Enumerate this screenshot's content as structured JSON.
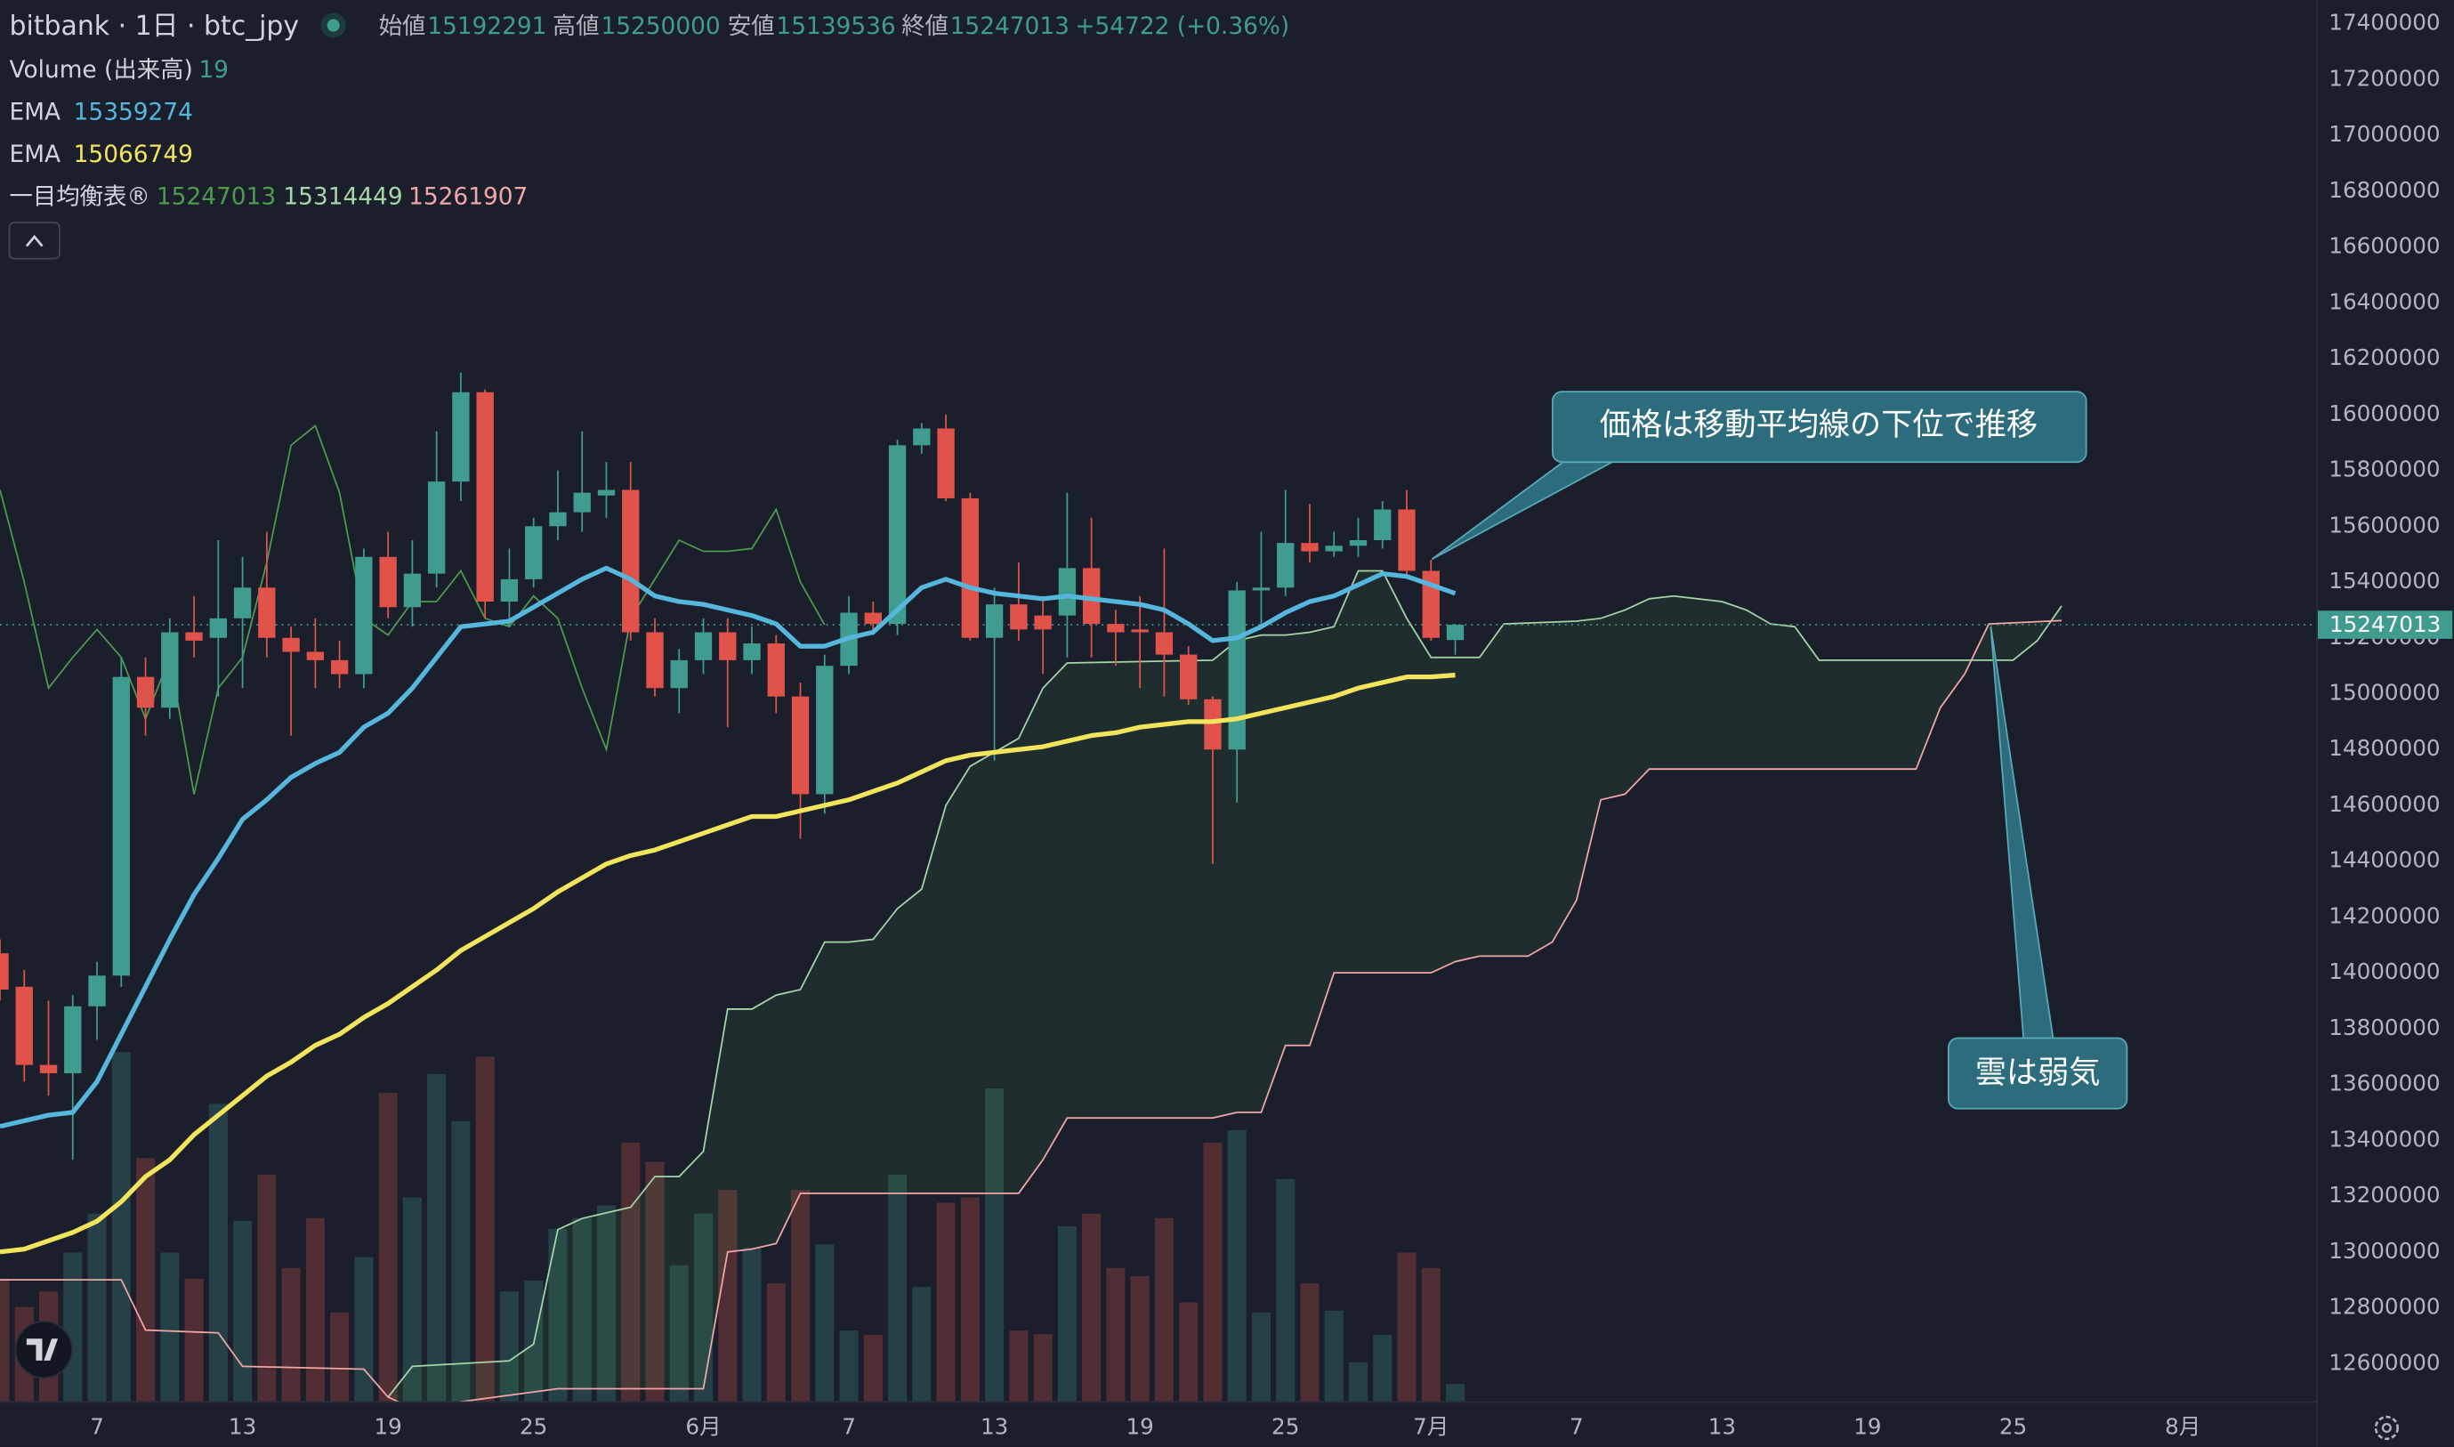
{
  "chart_data": {
    "type": "candlestick",
    "title": "bitbank · 1日 · btc_jpy",
    "ohlc_labels": [
      "始値",
      "高値",
      "安値",
      "終値"
    ],
    "change_label": "+54722 (+0.36%)",
    "up_color": "#3f9c8e",
    "down_color": "#e0534a",
    "x": [
      3,
      4,
      5,
      6,
      7,
      8,
      9,
      10,
      11,
      12,
      13,
      14,
      15,
      16,
      17,
      18,
      19,
      20,
      21,
      22,
      23,
      24,
      25,
      26,
      27,
      28,
      29,
      30,
      31,
      32,
      33,
      34,
      35,
      36,
      37,
      38,
      39,
      40,
      41,
      42,
      43,
      44,
      45,
      46,
      47,
      48,
      49,
      50,
      51,
      52,
      53,
      54,
      55,
      56,
      57,
      58,
      59,
      60,
      61,
      62,
      63
    ],
    "open": [
      14070000,
      13950000,
      13670000,
      13640000,
      13880000,
      13990000,
      15060000,
      14950000,
      15220000,
      15200000,
      15270000,
      15380000,
      15200000,
      15150000,
      15120000,
      15070000,
      15490000,
      15310000,
      15430000,
      15760000,
      16080000,
      15330000,
      15410000,
      15600000,
      15650000,
      15710000,
      15730000,
      15220000,
      15020000,
      15120000,
      15220000,
      15120000,
      15180000,
      14990000,
      14640000,
      15100000,
      15290000,
      15250000,
      15890000,
      15950000,
      15700000,
      15200000,
      15320000,
      15280000,
      15280000,
      15450000,
      15250000,
      15230000,
      15220000,
      15140000,
      14980000,
      14800000,
      15370000,
      15380000,
      15540000,
      15510000,
      15530000,
      15550000,
      15660000,
      15440000,
      15192291
    ],
    "high": [
      14120000,
      14010000,
      13900000,
      13920000,
      14040000,
      15130000,
      15130000,
      15270000,
      15350000,
      15550000,
      15490000,
      15580000,
      15240000,
      15270000,
      15190000,
      15520000,
      15580000,
      15550000,
      15940000,
      16150000,
      16090000,
      15520000,
      15630000,
      15800000,
      15940000,
      15830000,
      15830000,
      15270000,
      15160000,
      15270000,
      15270000,
      15240000,
      15210000,
      15040000,
      15140000,
      15350000,
      15330000,
      15910000,
      15970000,
      16000000,
      15720000,
      15380000,
      15470000,
      15350000,
      15720000,
      15630000,
      15300000,
      15350000,
      15520000,
      15170000,
      14990000,
      15400000,
      15580000,
      15730000,
      15680000,
      15580000,
      15630000,
      15690000,
      15730000,
      15480000,
      15250000
    ],
    "low": [
      13900000,
      13610000,
      13560000,
      13330000,
      13760000,
      13950000,
      14850000,
      14910000,
      15130000,
      14990000,
      15020000,
      15130000,
      14850000,
      15020000,
      15020000,
      15020000,
      15270000,
      15240000,
      15380000,
      15690000,
      15270000,
      15240000,
      15380000,
      15550000,
      15580000,
      15630000,
      15190000,
      14990000,
      14930000,
      15070000,
      14880000,
      15070000,
      14930000,
      14480000,
      14570000,
      15070000,
      15210000,
      15210000,
      15860000,
      15690000,
      15190000,
      14760000,
      15190000,
      15070000,
      15130000,
      15130000,
      15100000,
      15020000,
      14990000,
      14960000,
      14390000,
      14610000,
      15240000,
      15350000,
      15470000,
      15490000,
      15490000,
      15520000,
      15420000,
      15190000,
      15139536
    ],
    "close": [
      13940000,
      13670000,
      13640000,
      13880000,
      13990000,
      15060000,
      14950000,
      15220000,
      15190000,
      15270000,
      15380000,
      15200000,
      15150000,
      15120000,
      15070000,
      15490000,
      15310000,
      15430000,
      15760000,
      16080000,
      15330000,
      15410000,
      15600000,
      15650000,
      15720000,
      15730000,
      15220000,
      15020000,
      15120000,
      15220000,
      15120000,
      15180000,
      14990000,
      14640000,
      15100000,
      15290000,
      15250000,
      15890000,
      15950000,
      15700000,
      15200000,
      15320000,
      15230000,
      15230000,
      15450000,
      15250000,
      15220000,
      15220000,
      15140000,
      14980000,
      14800000,
      15370000,
      15380000,
      15540000,
      15510000,
      15530000,
      15550000,
      15660000,
      15440000,
      15200000,
      15247013
    ],
    "xlim": [
      3,
      98.5
    ],
    "ylim": [
      12465000,
      17484000
    ],
    "yticks": [
      12600000,
      12800000,
      13000000,
      13200000,
      13400000,
      13600000,
      13800000,
      14000000,
      14200000,
      14400000,
      14600000,
      14800000,
      15000000,
      15200000,
      15400000,
      15600000,
      15800000,
      16000000,
      16200000,
      16400000,
      16600000,
      16800000,
      17000000,
      17200000,
      17400000
    ],
    "xticks": [
      7,
      13,
      19,
      25,
      {
        "value": 32,
        "label": "6月"
      },
      {
        "value": 38,
        "label": "7"
      },
      {
        "value": 44,
        "label": "13"
      },
      {
        "value": 50,
        "label": "19"
      },
      {
        "value": 56,
        "label": "25"
      },
      {
        "value": 62,
        "label": "7月"
      },
      {
        "value": 68,
        "label": "7"
      },
      {
        "value": 74,
        "label": "13"
      },
      {
        "value": 80,
        "label": "19"
      },
      {
        "value": 86,
        "label": "25"
      },
      {
        "value": 93,
        "label": "8月"
      }
    ],
    "grid": false,
    "volume": {
      "name": "Volume (出来高)",
      "values": [
        135,
        104,
        121,
        164,
        207,
        385,
        268,
        164,
        135,
        328,
        199,
        250,
        147,
        202,
        98,
        159,
        340,
        225,
        361,
        309,
        380,
        121,
        133,
        190,
        202,
        216,
        285,
        264,
        150,
        207,
        233,
        169,
        130,
        233,
        173,
        78,
        73,
        250,
        126,
        219,
        225,
        345,
        78,
        74,
        193,
        207,
        147,
        138,
        202,
        109,
        285,
        299,
        98,
        245,
        130,
        100,
        43,
        73,
        164,
        147,
        19
      ]
    },
    "volume_ylim": [
      0,
      1545
    ],
    "series": [
      {
        "name": "EMA",
        "color": "#56b6dc",
        "values": [
          13450000,
          13470000,
          13490000,
          13500000,
          13610000,
          13780000,
          13950000,
          14120000,
          14280000,
          14410000,
          14550000,
          14620000,
          14700000,
          14750000,
          14790000,
          14880000,
          14930000,
          15020000,
          15130000,
          15240000,
          15250000,
          15260000,
          15310000,
          15360000,
          15410000,
          15450000,
          15410000,
          15350000,
          15330000,
          15320000,
          15300000,
          15280000,
          15250000,
          15170000,
          15170000,
          15200000,
          15220000,
          15300000,
          15380000,
          15410000,
          15380000,
          15360000,
          15350000,
          15340000,
          15350000,
          15340000,
          15330000,
          15320000,
          15300000,
          15250000,
          15190000,
          15200000,
          15240000,
          15290000,
          15330000,
          15350000,
          15390000,
          15430000,
          15420000,
          15390000,
          15359274
        ]
      },
      {
        "name": "EMA",
        "color": "#f3e45d",
        "values": [
          13000000,
          13010000,
          13040000,
          13070000,
          13110000,
          13180000,
          13270000,
          13330000,
          13420000,
          13490000,
          13560000,
          13630000,
          13680000,
          13740000,
          13780000,
          13840000,
          13890000,
          13950000,
          14010000,
          14080000,
          14130000,
          14180000,
          14230000,
          14290000,
          14340000,
          14390000,
          14420000,
          14440000,
          14470000,
          14500000,
          14530000,
          14560000,
          14560000,
          14580000,
          14600000,
          14620000,
          14650000,
          14680000,
          14720000,
          14760000,
          14780000,
          14790000,
          14800000,
          14810000,
          14830000,
          14850000,
          14860000,
          14880000,
          14890000,
          14900000,
          14900000,
          14910000,
          14930000,
          14950000,
          14970000,
          14990000,
          15020000,
          15040000,
          15060000,
          15060000,
          15066749
        ]
      }
    ],
    "ichimoku": {
      "name": "一目均衡表®",
      "cloud_color": "rgba(76,175,80,0.1)",
      "lines": [
        {
          "color": "#4e9a4e",
          "x": [
            3,
            4,
            5,
            6,
            7,
            8,
            9,
            10,
            11,
            12,
            13,
            14,
            15,
            16,
            17,
            18,
            19,
            20,
            21,
            22,
            23,
            24,
            25,
            26,
            27,
            28,
            29,
            30,
            31,
            32,
            33,
            34,
            35,
            36,
            37
          ],
          "values": [
            15730000,
            15400000,
            15020000,
            15130000,
            15230000,
            15130000,
            14910000,
            15130000,
            14640000,
            15020000,
            15130000,
            15470000,
            15890000,
            15960000,
            15720000,
            15270000,
            15210000,
            15330000,
            15330000,
            15440000,
            15270000,
            15240000,
            15350000,
            15270000,
            15020000,
            14800000,
            15270000,
            15410000,
            15550000,
            15510000,
            15510000,
            15520000,
            15660000,
            15400000,
            15247013
          ]
        },
        {
          "color": "#a5d6a7",
          "x": [
            19,
            20,
            24,
            25,
            26,
            27,
            28,
            29,
            30,
            31,
            32,
            33,
            34,
            35,
            36,
            37,
            38,
            39,
            40,
            41,
            42,
            43,
            44,
            45,
            46,
            47,
            53,
            54,
            55,
            56,
            57,
            58,
            59,
            60,
            61,
            62,
            63,
            64,
            65,
            68,
            69,
            70,
            71,
            72,
            73,
            74,
            75,
            76,
            77,
            78,
            86,
            87,
            88
          ],
          "values": [
            12480000,
            12590000,
            12610000,
            12670000,
            13080000,
            13120000,
            13140000,
            13160000,
            13270000,
            13270000,
            13360000,
            13870000,
            13870000,
            13920000,
            13940000,
            14110000,
            14110000,
            14120000,
            14230000,
            14300000,
            14600000,
            14740000,
            14790000,
            14840000,
            15020000,
            15110000,
            15120000,
            15190000,
            15210000,
            15210000,
            15220000,
            15240000,
            15440000,
            15440000,
            15270000,
            15130000,
            15130000,
            15130000,
            15250000,
            15260000,
            15270000,
            15300000,
            15340000,
            15350000,
            15340000,
            15330000,
            15300000,
            15250000,
            15240000,
            15120000,
            15120000,
            15190000,
            15314449
          ]
        },
        {
          "color": "#f2a7a7",
          "x": [
            3,
            8,
            9,
            12,
            13,
            18,
            19,
            20,
            26,
            32,
            33,
            34,
            35,
            36,
            45,
            46,
            47,
            53,
            54,
            55,
            56,
            57,
            58,
            62,
            63,
            64,
            66,
            67,
            68,
            69,
            70,
            71,
            82,
            83,
            84,
            85,
            88
          ],
          "values": [
            12900000,
            12900000,
            12720000,
            12710000,
            12590000,
            12580000,
            12480000,
            12440000,
            12510000,
            12510000,
            13000000,
            13010000,
            13030000,
            13210000,
            13210000,
            13330000,
            13480000,
            13480000,
            13500000,
            13500000,
            13740000,
            13740000,
            14000000,
            14000000,
            14040000,
            14060000,
            14060000,
            14110000,
            14260000,
            14620000,
            14640000,
            14730000,
            14730000,
            14950000,
            15070000,
            15250000,
            15261907
          ]
        }
      ]
    },
    "annotations": [
      "価格は移動平均線の下位で推移",
      "雲は弱気"
    ]
  }
}
